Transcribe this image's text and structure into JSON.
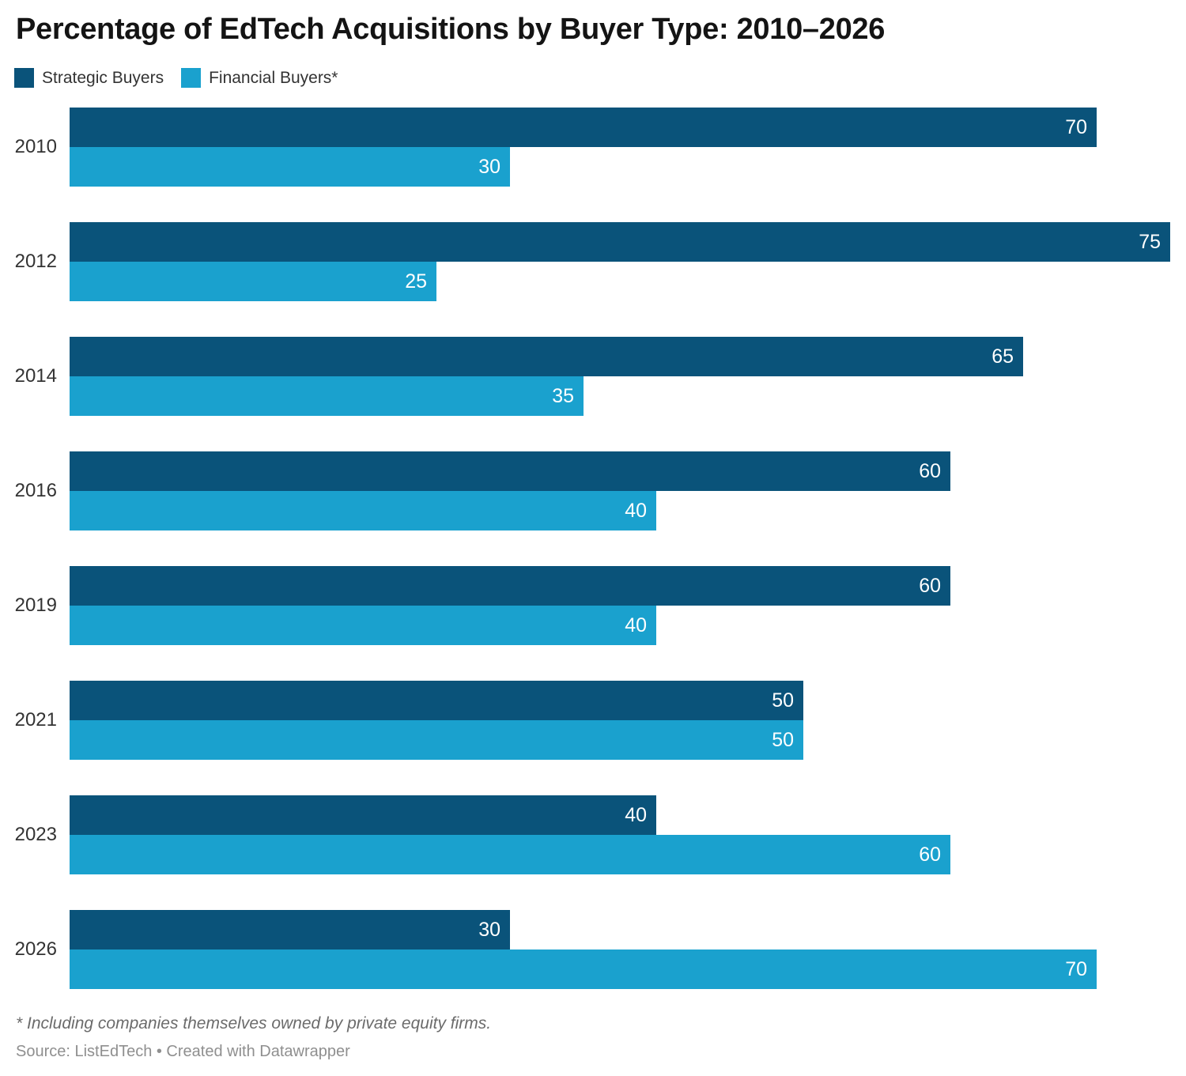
{
  "header": {
    "title": "Percentage of EdTech Acquisitions by Buyer Type: 2010–2026"
  },
  "legend": {
    "items": [
      {
        "label": "Strategic Buyers",
        "color": "#0a537a"
      },
      {
        "label": "Financial Buyers*",
        "color": "#1aa1ce"
      }
    ]
  },
  "chart_data": {
    "type": "bar",
    "orientation": "horizontal",
    "title": "Percentage of EdTech Acquisitions by Buyer Type: 2010–2026",
    "categories": [
      "2010",
      "2012",
      "2014",
      "2016",
      "2019",
      "2021",
      "2023",
      "2026"
    ],
    "series": [
      {
        "name": "Strategic Buyers",
        "color": "#0a537a",
        "values": [
          70,
          75,
          65,
          60,
          60,
          50,
          40,
          30
        ]
      },
      {
        "name": "Financial Buyers*",
        "color": "#1aa1ce",
        "values": [
          30,
          25,
          35,
          40,
          40,
          50,
          60,
          70
        ]
      }
    ],
    "xlabel": "",
    "ylabel": "",
    "xlim": [
      0,
      75
    ],
    "value_labels": "inside-end, white",
    "grid": false,
    "legend_position": "top-left"
  },
  "footer": {
    "footnote": "* Including companies themselves owned by private equity firms.",
    "source": "Source: ListEdTech • Created with Datawrapper"
  },
  "colors": {
    "strategic": "#0a537a",
    "financial": "#1aa1ce",
    "title": "#141414",
    "year_label": "#333333",
    "value_label": "#ffffff",
    "footnote": "#6b6b6b",
    "source": "#8f8f8f",
    "background": "#ffffff"
  }
}
